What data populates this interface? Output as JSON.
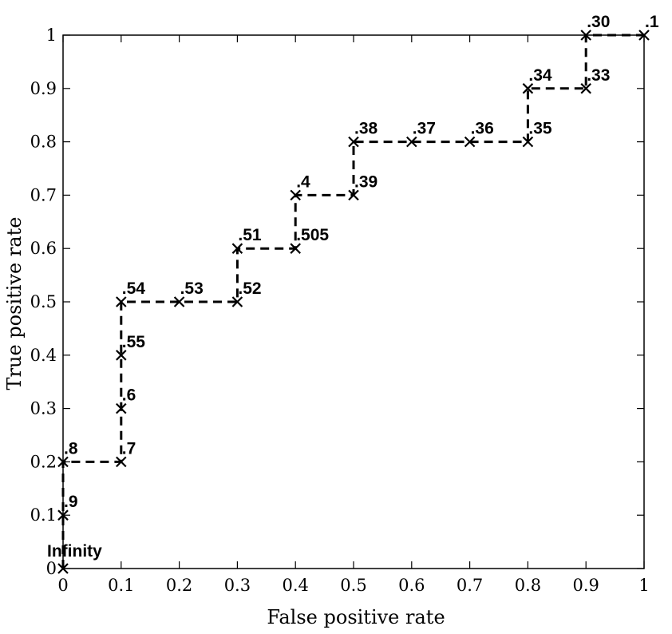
{
  "chart_data": {
    "type": "line",
    "xlabel": "False positive rate",
    "ylabel": "True positive rate",
    "xlim": [
      0,
      1
    ],
    "ylim": [
      0,
      1
    ],
    "xticks": [
      "0",
      "0.1",
      "0.2",
      "0.3",
      "0.4",
      "0.5",
      "0.6",
      "0.7",
      "0.8",
      "0.9",
      "1"
    ],
    "yticks": [
      "0",
      "0.1",
      "0.2",
      "0.3",
      "0.4",
      "0.5",
      "0.6",
      "0.7",
      "0.8",
      "0.9",
      "1"
    ],
    "grid": false,
    "line_style": "dashed",
    "marker": "x",
    "points": [
      {
        "x": 0.0,
        "y": 0.0,
        "label": "Infinity"
      },
      {
        "x": 0.0,
        "y": 0.1,
        "label": ".9"
      },
      {
        "x": 0.0,
        "y": 0.2,
        "label": ".8"
      },
      {
        "x": 0.1,
        "y": 0.2,
        "label": ".7"
      },
      {
        "x": 0.1,
        "y": 0.3,
        "label": ".6"
      },
      {
        "x": 0.1,
        "y": 0.4,
        "label": ".55"
      },
      {
        "x": 0.1,
        "y": 0.5,
        "label": ".54"
      },
      {
        "x": 0.2,
        "y": 0.5,
        "label": ".53"
      },
      {
        "x": 0.3,
        "y": 0.5,
        "label": ".52"
      },
      {
        "x": 0.3,
        "y": 0.6,
        "label": ".51"
      },
      {
        "x": 0.4,
        "y": 0.6,
        "label": ".505"
      },
      {
        "x": 0.4,
        "y": 0.7,
        "label": ".4"
      },
      {
        "x": 0.5,
        "y": 0.7,
        "label": ".39"
      },
      {
        "x": 0.5,
        "y": 0.8,
        "label": ".38"
      },
      {
        "x": 0.6,
        "y": 0.8,
        "label": ".37"
      },
      {
        "x": 0.7,
        "y": 0.8,
        "label": ".36"
      },
      {
        "x": 0.8,
        "y": 0.8,
        "label": ".35"
      },
      {
        "x": 0.8,
        "y": 0.9,
        "label": ".34"
      },
      {
        "x": 0.9,
        "y": 0.9,
        "label": ".33"
      },
      {
        "x": 0.9,
        "y": 1.0,
        "label": ".30"
      },
      {
        "x": 1.0,
        "y": 1.0,
        "label": ".1"
      }
    ]
  }
}
